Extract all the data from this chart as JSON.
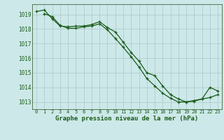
{
  "title": "Graphe pression niveau de la mer (hPa)",
  "background_color": "#cce8e8",
  "plot_bg_color": "#cce8e8",
  "grid_color": "#b0cccc",
  "line_color": "#1a5c1a",
  "x_labels": [
    "0",
    "1",
    "2",
    "3",
    "4",
    "5",
    "6",
    "7",
    "8",
    "9",
    "10",
    "11",
    "12",
    "13",
    "14",
    "15",
    "16",
    "17",
    "18",
    "19",
    "20",
    "21",
    "22",
    "23"
  ],
  "xlim": [
    -0.5,
    23.5
  ],
  "ylim": [
    1012.5,
    1019.7
  ],
  "yticks": [
    1013,
    1014,
    1015,
    1016,
    1017,
    1018,
    1019
  ],
  "line1_x": [
    0,
    1,
    2,
    3,
    4,
    5,
    6,
    7,
    8,
    9,
    10,
    11,
    12,
    13,
    14,
    15,
    16,
    17,
    18,
    19,
    20,
    21,
    22,
    23
  ],
  "line1_y": [
    1019.2,
    1019.3,
    1018.7,
    1018.2,
    1018.15,
    1018.2,
    1018.2,
    1018.3,
    1018.5,
    1018.1,
    1017.8,
    1017.1,
    1016.4,
    1015.8,
    1015.0,
    1014.8,
    1014.1,
    1013.5,
    1013.2,
    1013.0,
    1013.1,
    1013.2,
    1013.3,
    1013.5
  ],
  "line2_x": [
    1,
    2,
    3,
    4,
    5,
    6,
    7,
    8,
    9,
    10,
    11,
    12,
    13,
    14,
    15,
    16,
    17,
    18,
    19,
    20,
    21,
    22,
    23
  ],
  "line2_y": [
    1019.05,
    1018.85,
    1018.25,
    1018.05,
    1018.05,
    1018.15,
    1018.2,
    1018.35,
    1017.95,
    1017.35,
    1016.75,
    1016.1,
    1015.4,
    1014.6,
    1014.1,
    1013.6,
    1013.25,
    1013.0,
    1013.0,
    1013.05,
    1013.2,
    1014.0,
    1013.75
  ]
}
